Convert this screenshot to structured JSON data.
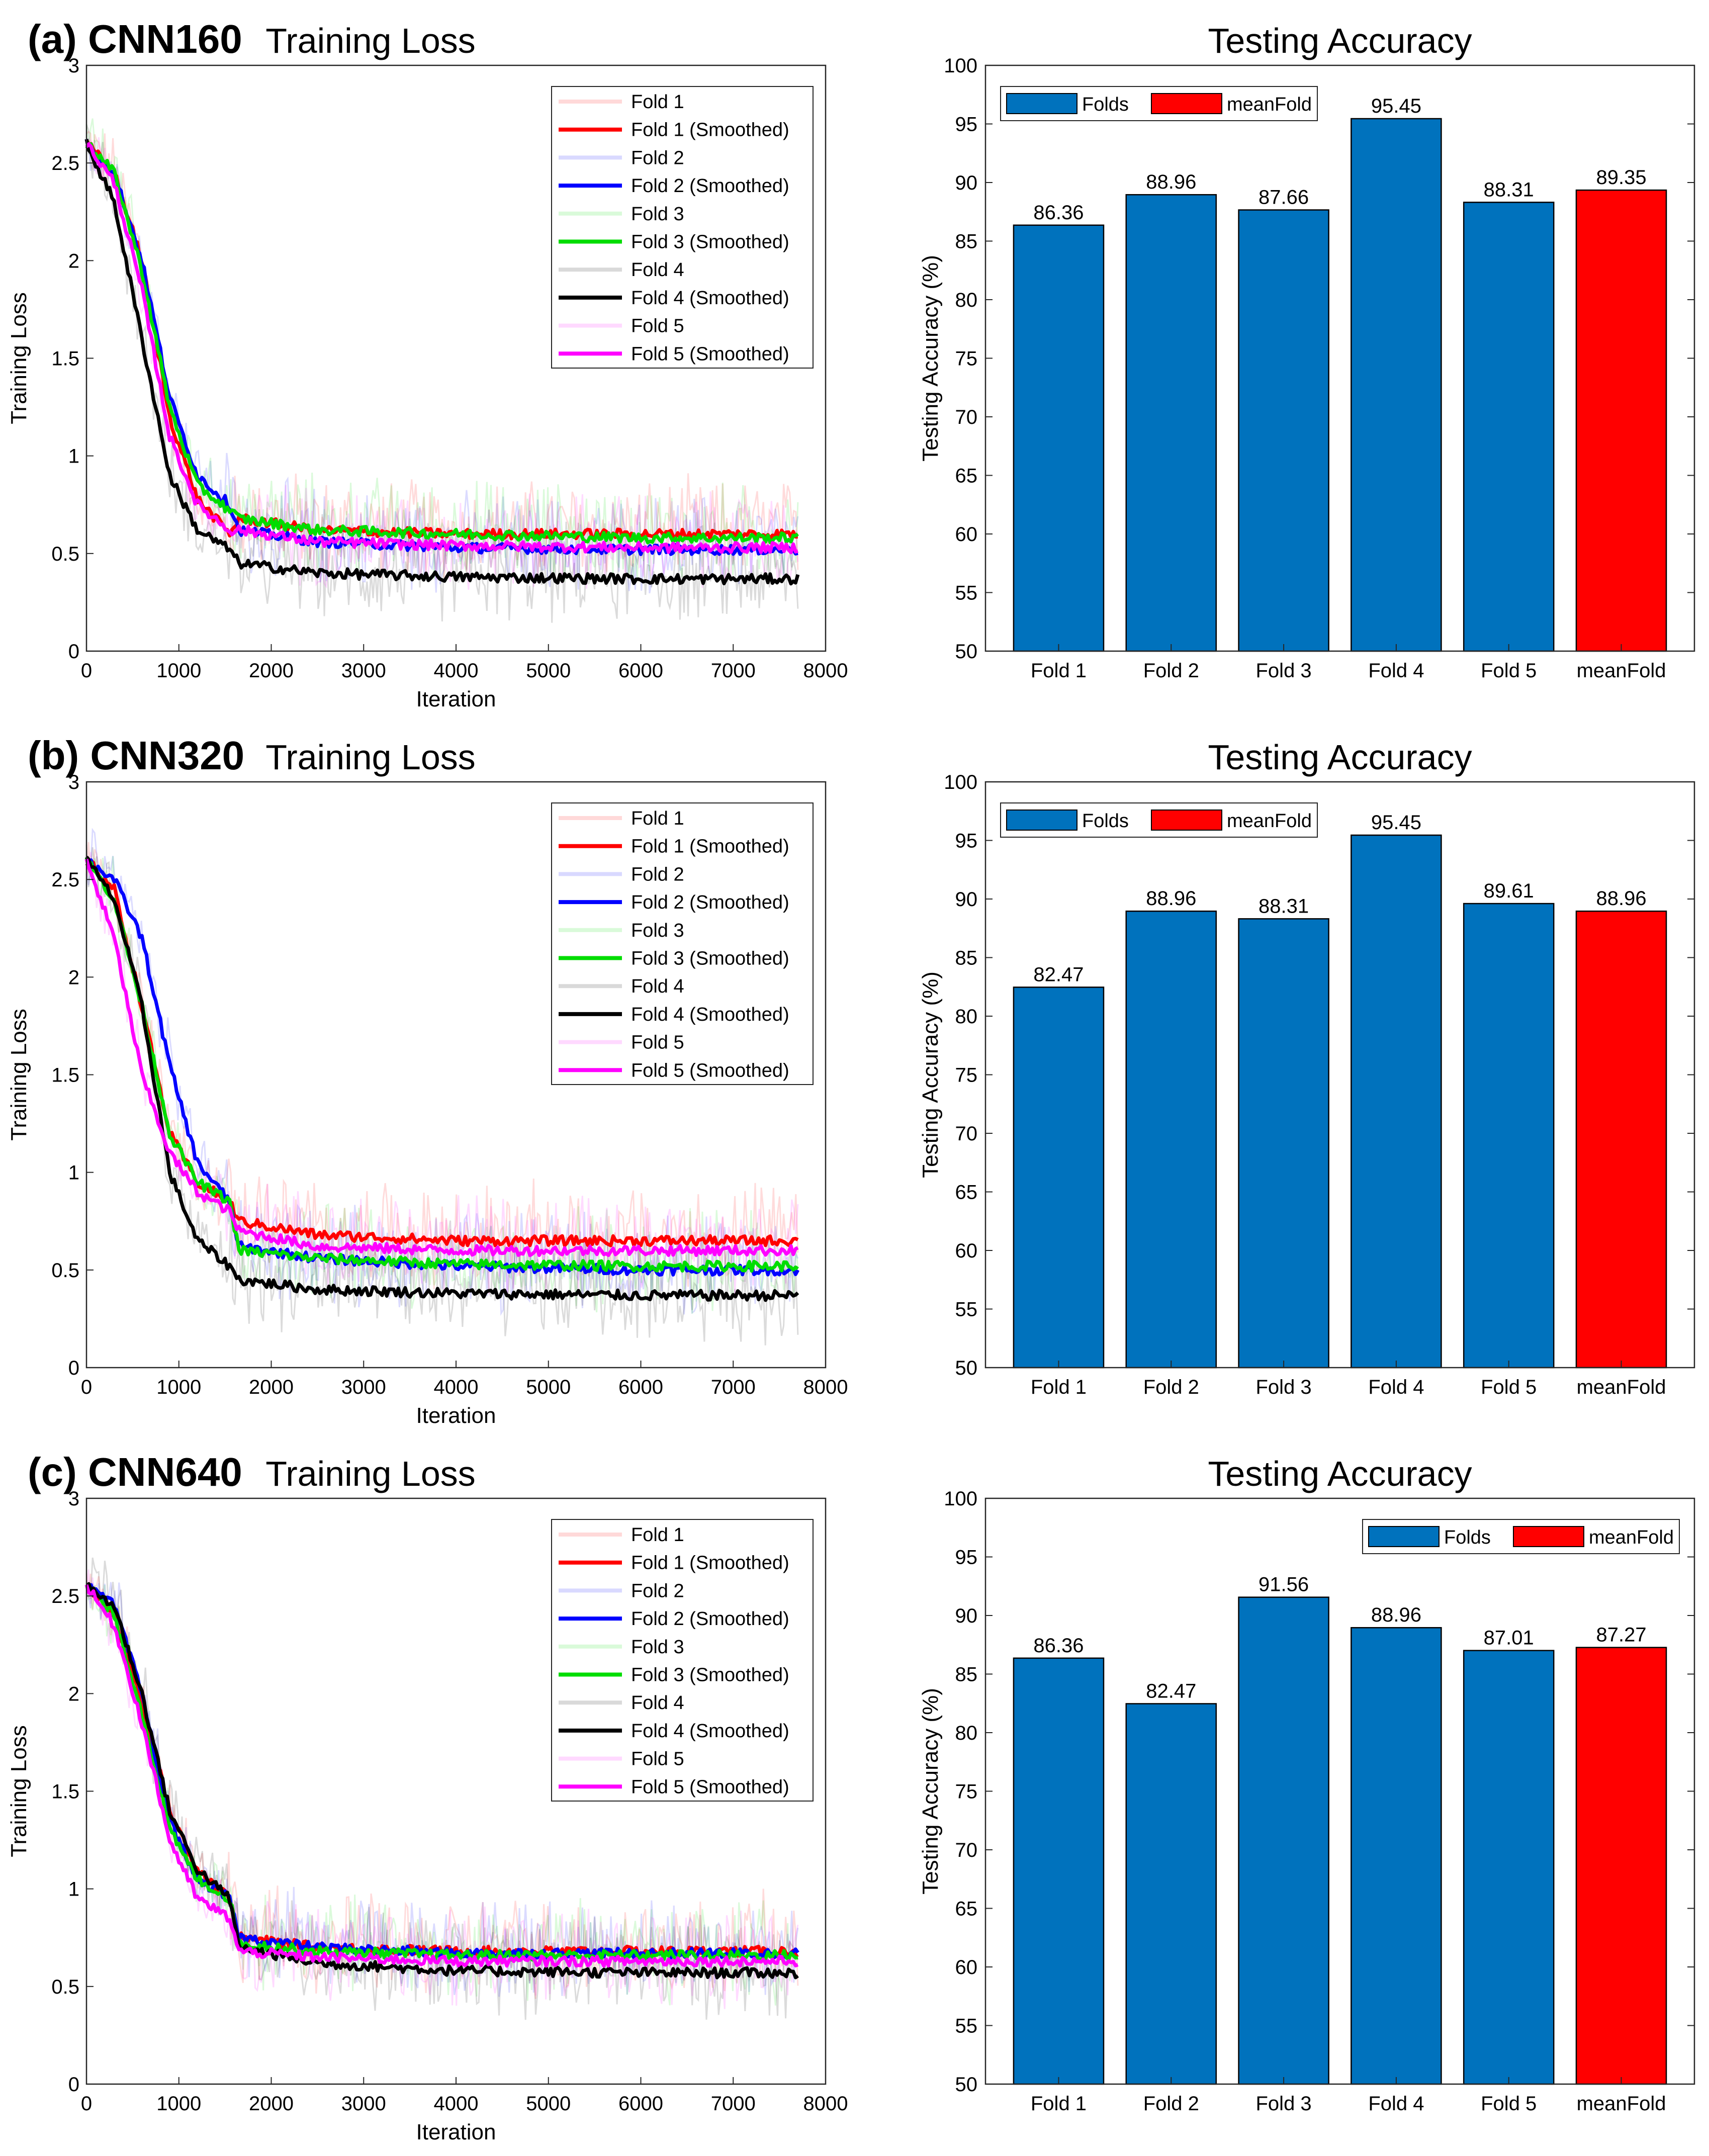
{
  "figure": {
    "rows": [
      {
        "panel_label": "(a) CNN160",
        "loss_title": "Training Loss",
        "acc_title": "Testing Accuracy"
      },
      {
        "panel_label": "(b) CNN320",
        "loss_title": "Training Loss",
        "acc_title": "Testing Accuracy"
      },
      {
        "panel_label": "(c) CNN640",
        "loss_title": "Training Loss",
        "acc_title": "Testing Accuracy"
      }
    ]
  },
  "chart_data": [
    {
      "id": "loss-a",
      "type": "line",
      "title": "Training Loss",
      "xlabel": "Iteration",
      "ylabel": "Training Loss",
      "xlim": [
        0,
        8000
      ],
      "ylim": [
        0,
        3
      ],
      "xticks": [
        "0",
        "1000",
        "2000",
        "3000",
        "4000",
        "5000",
        "6000",
        "7000",
        "8000"
      ],
      "yticks": [
        "0",
        "0.5",
        "1",
        "1.5",
        "2",
        "2.5",
        "3"
      ],
      "legend_position": "top-right",
      "legend": [
        "Fold 1",
        "Fold 1 (Smoothed)",
        "Fold 2",
        "Fold 2 (Smoothed)",
        "Fold 3",
        "Fold 3 (Smoothed)",
        "Fold 4",
        "Fold 4 (Smoothed)",
        "Fold 5",
        "Fold 5 (Smoothed)"
      ],
      "colors": [
        "#ff0000",
        "#0000ff",
        "#00dd00",
        "#000000",
        "#ff00ff"
      ],
      "series": [
        {
          "name": "Fold 1 (Smoothed)",
          "x": [
            0,
            300,
            600,
            900,
            1200,
            1550,
            1650,
            2500,
            4000,
            6000,
            7700
          ],
          "y": [
            2.6,
            2.45,
            2.0,
            1.2,
            0.78,
            0.6,
            0.68,
            0.62,
            0.6,
            0.6,
            0.6
          ]
        },
        {
          "name": "Fold 2 (Smoothed)",
          "x": [
            0,
            300,
            600,
            900,
            1200,
            1550,
            1650,
            2500,
            4000,
            6000,
            7700
          ],
          "y": [
            2.6,
            2.45,
            2.0,
            1.3,
            0.9,
            0.75,
            0.62,
            0.56,
            0.53,
            0.52,
            0.52
          ]
        },
        {
          "name": "Fold 3 (Smoothed)",
          "x": [
            0,
            300,
            600,
            900,
            1200,
            1550,
            1650,
            2500,
            4000,
            6000,
            7700
          ],
          "y": [
            2.6,
            2.45,
            1.95,
            1.25,
            0.85,
            0.72,
            0.68,
            0.62,
            0.6,
            0.58,
            0.58
          ]
        },
        {
          "name": "Fold 4 (Smoothed)",
          "x": [
            0,
            300,
            600,
            900,
            1200,
            1550,
            1650,
            2500,
            4000,
            6000,
            7700
          ],
          "y": [
            2.6,
            2.3,
            1.6,
            0.9,
            0.62,
            0.52,
            0.45,
            0.4,
            0.38,
            0.37,
            0.37
          ]
        },
        {
          "name": "Fold 5 (Smoothed)",
          "x": [
            0,
            300,
            600,
            900,
            1200,
            1550,
            1650,
            2500,
            4000,
            6000,
            7700
          ],
          "y": [
            2.6,
            2.4,
            1.85,
            1.1,
            0.75,
            0.62,
            0.62,
            0.56,
            0.54,
            0.53,
            0.53
          ]
        }
      ]
    },
    {
      "id": "acc-a",
      "type": "bar",
      "title": "Testing Accuracy",
      "ylabel": "Testing Accuracy (%)",
      "ylim": [
        50,
        100
      ],
      "yticks": [
        "50",
        "55",
        "60",
        "65",
        "70",
        "75",
        "80",
        "85",
        "90",
        "95",
        "100"
      ],
      "categories": [
        "Fold 1",
        "Fold 2",
        "Fold 3",
        "Fold 4",
        "Fold 5",
        "meanFold"
      ],
      "values": [
        86.36,
        88.96,
        87.66,
        95.45,
        88.31,
        89.35
      ],
      "value_labels": [
        "86.36",
        "88.96",
        "87.66",
        "95.45",
        "88.31",
        "89.35"
      ],
      "legend": [
        "Folds",
        "meanFold"
      ],
      "legend_position": "top-left",
      "colors": {
        "folds": "#0072bd",
        "mean": "#ff0000"
      }
    },
    {
      "id": "loss-b",
      "type": "line",
      "title": "Training Loss",
      "xlabel": "Iteration",
      "ylabel": "Training Loss",
      "xlim": [
        0,
        8000
      ],
      "ylim": [
        0,
        3
      ],
      "xticks": [
        "0",
        "1000",
        "2000",
        "3000",
        "4000",
        "5000",
        "6000",
        "7000",
        "8000"
      ],
      "yticks": [
        "0",
        "0.5",
        "1",
        "1.5",
        "2",
        "2.5",
        "3"
      ],
      "legend_position": "top-right",
      "legend": [
        "Fold 1",
        "Fold 1 (Smoothed)",
        "Fold 2",
        "Fold 2 (Smoothed)",
        "Fold 3",
        "Fold 3 (Smoothed)",
        "Fold 4",
        "Fold 4 (Smoothed)",
        "Fold 5",
        "Fold 5 (Smoothed)"
      ],
      "colors": [
        "#ff0000",
        "#0000ff",
        "#00dd00",
        "#000000",
        "#ff00ff"
      ],
      "series": [
        {
          "name": "Fold 1 (Smoothed)",
          "x": [
            0,
            300,
            600,
            900,
            1200,
            1550,
            1650,
            2500,
            4000,
            6000,
            7700
          ],
          "y": [
            2.6,
            2.45,
            1.85,
            1.2,
            0.95,
            0.85,
            0.75,
            0.68,
            0.65,
            0.65,
            0.65
          ]
        },
        {
          "name": "Fold 2 (Smoothed)",
          "x": [
            0,
            300,
            600,
            900,
            1200,
            1550,
            1650,
            2500,
            4000,
            6000,
            7700
          ],
          "y": [
            2.6,
            2.5,
            2.2,
            1.55,
            1.05,
            0.85,
            0.62,
            0.56,
            0.52,
            0.5,
            0.5
          ]
        },
        {
          "name": "Fold 3 (Smoothed)",
          "x": [
            0,
            300,
            600,
            900,
            1200,
            1550,
            1650,
            2500,
            4000,
            6000,
            7700
          ],
          "y": [
            2.6,
            2.4,
            1.85,
            1.2,
            0.95,
            0.85,
            0.6,
            0.56,
            0.53,
            0.52,
            0.52
          ]
        },
        {
          "name": "Fold 4 (Smoothed)",
          "x": [
            0,
            300,
            600,
            900,
            1200,
            1550,
            1650,
            2500,
            4000,
            6000,
            7700
          ],
          "y": [
            2.6,
            2.4,
            1.85,
            1.0,
            0.65,
            0.52,
            0.45,
            0.4,
            0.38,
            0.37,
            0.37
          ]
        },
        {
          "name": "Fold 5 (Smoothed)",
          "x": [
            0,
            300,
            600,
            900,
            1200,
            1550,
            1650,
            2500,
            4000,
            6000,
            7700
          ],
          "y": [
            2.6,
            2.2,
            1.5,
            1.1,
            0.9,
            0.8,
            0.7,
            0.62,
            0.6,
            0.6,
            0.6
          ]
        }
      ]
    },
    {
      "id": "acc-b",
      "type": "bar",
      "title": "Testing Accuracy",
      "ylabel": "Testing Accuracy (%)",
      "ylim": [
        50,
        100
      ],
      "yticks": [
        "50",
        "55",
        "60",
        "65",
        "70",
        "75",
        "80",
        "85",
        "90",
        "95",
        "100"
      ],
      "categories": [
        "Fold 1",
        "Fold 2",
        "Fold 3",
        "Fold 4",
        "Fold 5",
        "meanFold"
      ],
      "values": [
        82.47,
        88.96,
        88.31,
        95.45,
        89.61,
        88.96
      ],
      "value_labels": [
        "82.47",
        "88.96",
        "88.31",
        "95.45",
        "89.61",
        "88.96"
      ],
      "legend": [
        "Folds",
        "meanFold"
      ],
      "legend_position": "top-left",
      "colors": {
        "folds": "#0072bd",
        "mean": "#ff0000"
      }
    },
    {
      "id": "loss-c",
      "type": "line",
      "title": "Training Loss",
      "xlabel": "Iteration",
      "ylabel": "Training Loss",
      "xlim": [
        0,
        8000
      ],
      "ylim": [
        0,
        3
      ],
      "xticks": [
        "0",
        "1000",
        "2000",
        "3000",
        "4000",
        "5000",
        "6000",
        "7000",
        "8000"
      ],
      "yticks": [
        "0",
        "0.5",
        "1",
        "1.5",
        "2",
        "2.5",
        "3"
      ],
      "legend_position": "top-right",
      "legend": [
        "Fold 1",
        "Fold 1 (Smoothed)",
        "Fold 2",
        "Fold 2 (Smoothed)",
        "Fold 3",
        "Fold 3 (Smoothed)",
        "Fold 4",
        "Fold 4 (Smoothed)",
        "Fold 5",
        "Fold 5 (Smoothed)"
      ],
      "colors": [
        "#ff0000",
        "#0000ff",
        "#00dd00",
        "#000000",
        "#ff00ff"
      ],
      "series": [
        {
          "name": "Fold 1 (Smoothed)",
          "x": [
            0,
            300,
            600,
            900,
            1200,
            1550,
            1650,
            2500,
            4000,
            6000,
            7700
          ],
          "y": [
            2.55,
            2.4,
            1.95,
            1.4,
            1.1,
            0.95,
            0.75,
            0.7,
            0.68,
            0.68,
            0.68
          ]
        },
        {
          "name": "Fold 2 (Smoothed)",
          "x": [
            0,
            300,
            600,
            900,
            1200,
            1550,
            1650,
            2500,
            4000,
            6000,
            7700
          ],
          "y": [
            2.55,
            2.45,
            2.0,
            1.35,
            1.05,
            0.95,
            0.75,
            0.7,
            0.67,
            0.67,
            0.67
          ]
        },
        {
          "name": "Fold 3 (Smoothed)",
          "x": [
            0,
            300,
            600,
            900,
            1200,
            1550,
            1650,
            2500,
            4000,
            6000,
            7700
          ],
          "y": [
            2.55,
            2.4,
            1.9,
            1.3,
            1.05,
            0.95,
            0.72,
            0.68,
            0.66,
            0.66,
            0.66
          ]
        },
        {
          "name": "Fold 4 (Smoothed)",
          "x": [
            0,
            300,
            600,
            900,
            1200,
            1550,
            1650,
            2500,
            4000,
            6000,
            7700
          ],
          "y": [
            2.55,
            2.45,
            2.0,
            1.4,
            1.1,
            0.95,
            0.7,
            0.62,
            0.58,
            0.57,
            0.57
          ]
        },
        {
          "name": "Fold 5 (Smoothed)",
          "x": [
            0,
            300,
            600,
            900,
            1200,
            1550,
            1650,
            2500,
            4000,
            6000,
            7700
          ],
          "y": [
            2.55,
            2.35,
            1.85,
            1.25,
            0.95,
            0.85,
            0.68,
            0.65,
            0.63,
            0.63,
            0.63
          ]
        }
      ]
    },
    {
      "id": "acc-c",
      "type": "bar",
      "title": "Testing Accuracy",
      "ylabel": "Testing Accuracy (%)",
      "ylim": [
        50,
        100
      ],
      "yticks": [
        "50",
        "55",
        "60",
        "65",
        "70",
        "75",
        "80",
        "85",
        "90",
        "95",
        "100"
      ],
      "categories": [
        "Fold 1",
        "Fold 2",
        "Fold 3",
        "Fold 4",
        "Fold 5",
        "meanFold"
      ],
      "values": [
        86.36,
        82.47,
        91.56,
        88.96,
        87.01,
        87.27
      ],
      "value_labels": [
        "86.36",
        "82.47",
        "91.56",
        "88.96",
        "87.01",
        "87.27"
      ],
      "legend": [
        "Folds",
        "meanFold"
      ],
      "legend_position": "top-right",
      "colors": {
        "folds": "#0072bd",
        "mean": "#ff0000"
      }
    }
  ]
}
